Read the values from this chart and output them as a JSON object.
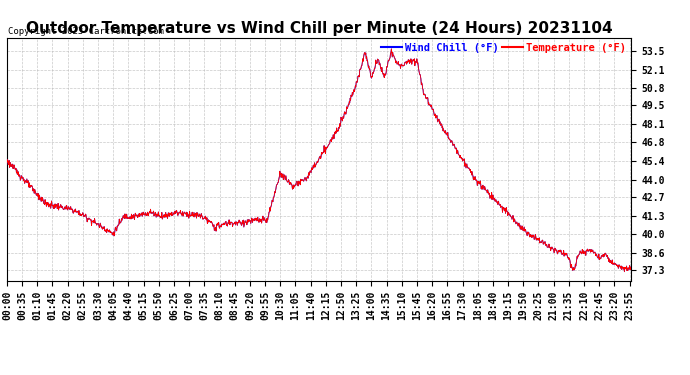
{
  "title": "Outdoor Temperature vs Wind Chill per Minute (24 Hours) 20231104",
  "copyright": "Copyright 2023 Cartronics.com",
  "legend_wind_chill": "Wind Chill (°F)",
  "legend_temperature": "Temperature (°F)",
  "wind_chill_color": "blue",
  "temperature_color": "red",
  "yticks": [
    37.3,
    38.6,
    40.0,
    41.3,
    42.7,
    44.0,
    45.4,
    46.8,
    48.1,
    49.5,
    50.8,
    52.1,
    53.5
  ],
  "ylim": [
    36.5,
    54.5
  ],
  "background_color": "#ffffff",
  "grid_color": "#bbbbbb",
  "title_fontsize": 11,
  "tick_fontsize": 7,
  "fig_width": 6.9,
  "fig_height": 3.75,
  "dpi": 100
}
